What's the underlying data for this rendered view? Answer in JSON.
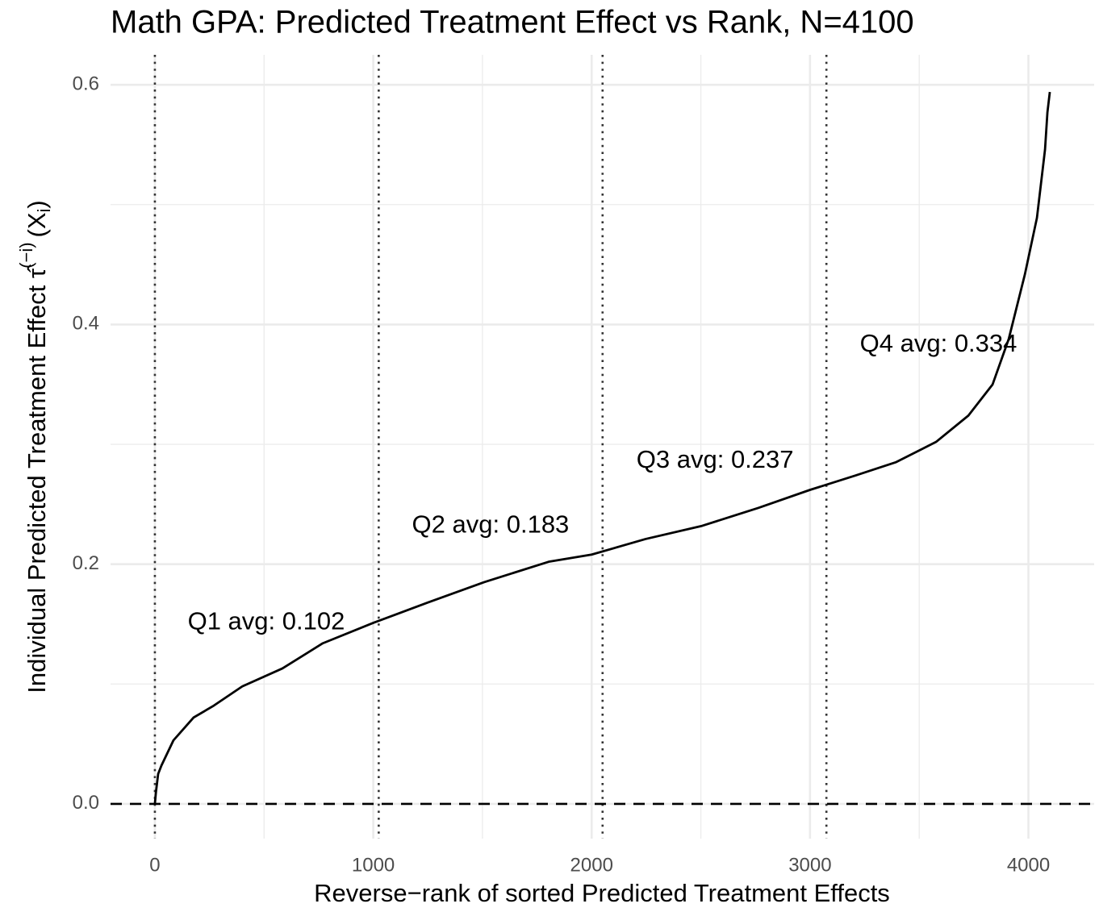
{
  "chart_data": {
    "type": "line",
    "title": "Math GPA: Predicted Treatment Effect vs Rank, N=4100",
    "xlabel": "Reverse−rank of sorted Predicted Treatment Effects",
    "ylabel": {
      "text": "Individual Predicted Treatment Effect",
      "symbol": "τ̂",
      "superscript": "(−i)",
      "argument": "(X",
      "subscript": "i",
      "close": ")"
    },
    "x": [
      0,
      5,
      15,
      30,
      85,
      177,
      270,
      400,
      584,
      769,
      1000,
      1250,
      1508,
      1803,
      2000,
      2247,
      2506,
      2764,
      3000,
      3208,
      3392,
      3577,
      3725,
      3836,
      3910,
      3984,
      4039,
      4076,
      4087,
      4098
    ],
    "values": [
      0.0,
      0.01,
      0.025,
      0.032,
      0.053,
      0.072,
      0.082,
      0.098,
      0.113,
      0.134,
      0.151,
      0.168,
      0.185,
      0.202,
      0.208,
      0.221,
      0.232,
      0.247,
      0.262,
      0.274,
      0.285,
      0.302,
      0.324,
      0.35,
      0.388,
      0.442,
      0.489,
      0.546,
      0.577,
      0.594
    ],
    "color": "#000000",
    "xlim": [
      -203,
      4301
    ],
    "ylim": [
      -0.029,
      0.625
    ],
    "xticks": [
      0,
      1000,
      2000,
      3000,
      4000
    ],
    "yticks": [
      {
        "value": 0,
        "label": "0.0"
      },
      0.2,
      0.4,
      0.6
    ],
    "minor_xticks": [
      500,
      1500,
      2500,
      3500
    ],
    "minor_yticks": [
      0.1,
      0.3,
      0.5
    ],
    "grid": true,
    "vlines": [
      0,
      1025,
      2050,
      3075
    ],
    "hline": 0,
    "annotations": [
      {
        "text": "Q1 avg: 0.102",
        "x": 510,
        "y": 0.151
      },
      {
        "text": "Q2 avg: 0.183",
        "x": 1537,
        "y": 0.232
      },
      {
        "text": "Q3 avg: 0.237",
        "x": 2565,
        "y": 0.286
      },
      {
        "text": "Q4 avg: 0.334",
        "x": 3588,
        "y": 0.383
      }
    ]
  }
}
